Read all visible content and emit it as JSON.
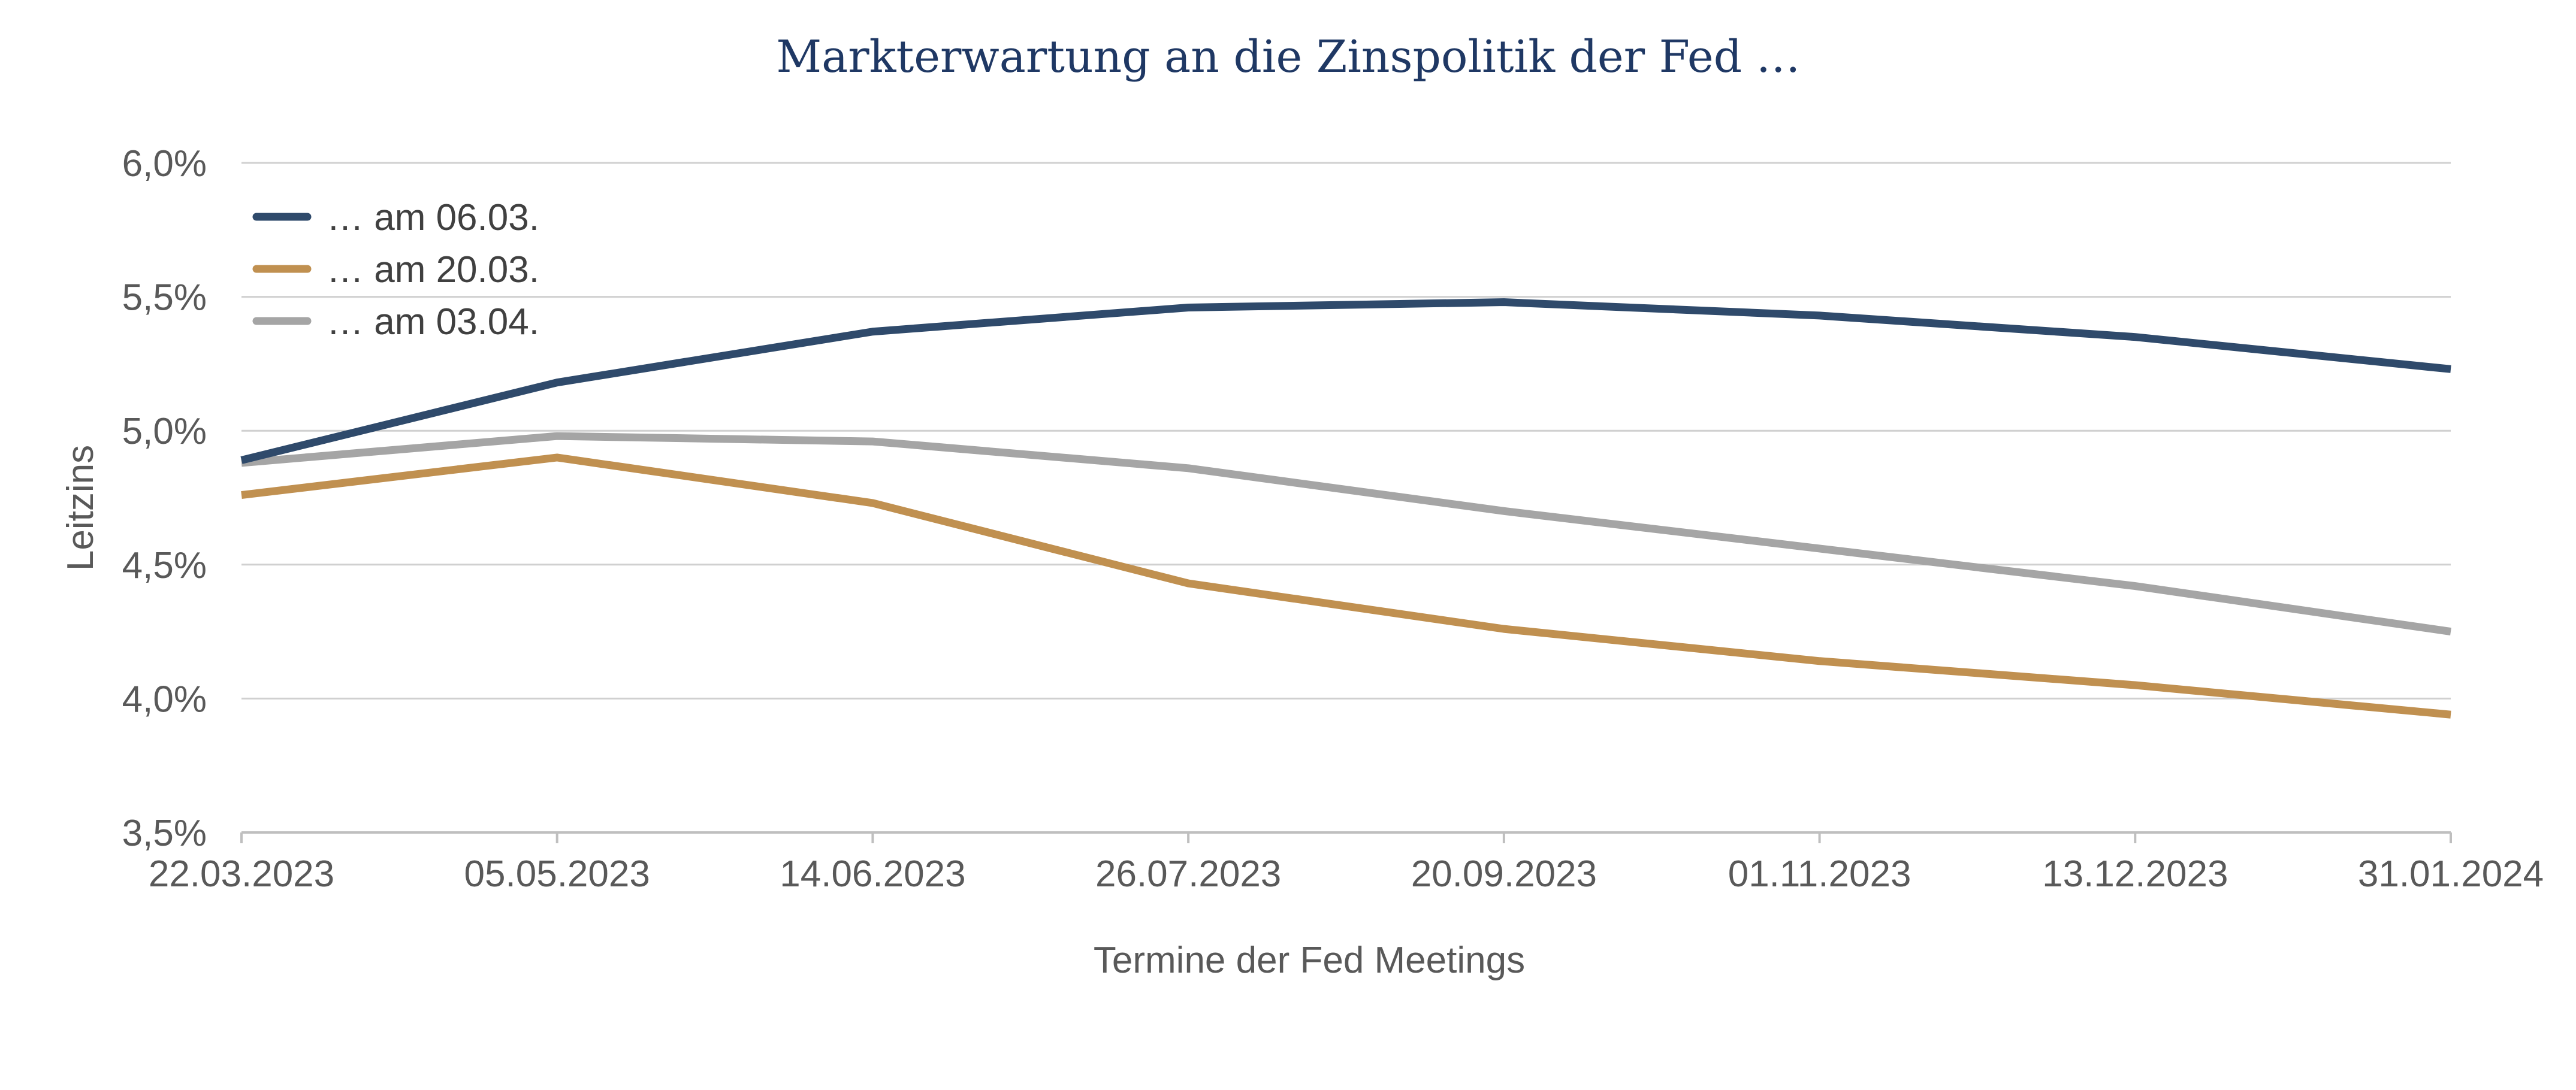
{
  "chart_data": {
    "type": "line",
    "title": "Markterwartung an die Zinspolitik der Fed …",
    "xlabel": "Termine der Fed Meetings",
    "ylabel": "Leitzins",
    "categories": [
      "22.03.2023",
      "05.05.2023",
      "14.06.2023",
      "26.07.2023",
      "20.09.2023",
      "01.11.2023",
      "13.12.2023",
      "31.01.2024"
    ],
    "ylim": [
      3.5,
      6.0
    ],
    "yticks": [
      3.5,
      4.0,
      4.5,
      5.0,
      5.5,
      6.0
    ],
    "ytick_labels": [
      "3,5%",
      "4,0%",
      "4,5%",
      "5,0%",
      "5,5%",
      "6,0%"
    ],
    "grid": true,
    "legend_position": "top-left",
    "series": [
      {
        "name": "… am 06.03.",
        "color": "#2f4a6b",
        "values": [
          4.89,
          5.18,
          5.37,
          5.46,
          5.48,
          5.43,
          5.35,
          5.23
        ]
      },
      {
        "name": "… am 20.03.",
        "color": "#c09050",
        "values": [
          4.76,
          4.9,
          4.73,
          4.43,
          4.26,
          4.14,
          4.05,
          3.94
        ]
      },
      {
        "name": "… am 03.04.",
        "color": "#a5a5a5",
        "values": [
          4.88,
          4.98,
          4.96,
          4.86,
          4.7,
          4.56,
          4.42,
          4.25
        ]
      }
    ]
  }
}
